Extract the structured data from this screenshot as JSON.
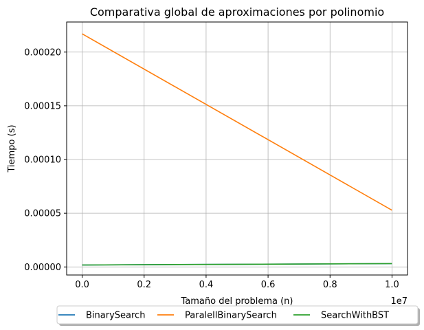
{
  "chart_data": {
    "type": "line",
    "title": "Comparativa global de aproximaciones por polinomio",
    "xlabel": "Tamaño del problema (n)",
    "ylabel": "Tiempo (s)",
    "x_offset_label": "1e7",
    "xlim": [
      -0.05,
      1.05
    ],
    "ylim": [
      -7.5e-06,
      0.000228
    ],
    "xticks": [
      0.0,
      0.2,
      0.4,
      0.6,
      0.8,
      1.0
    ],
    "xtick_labels": [
      "0.0",
      "0.2",
      "0.4",
      "0.6",
      "0.8",
      "1.0"
    ],
    "yticks": [
      0.0,
      5e-05,
      0.0001,
      0.00015,
      0.0002
    ],
    "ytick_labels": [
      "0.00000",
      "0.00005",
      "0.00010",
      "0.00015",
      "0.00020"
    ],
    "grid": true,
    "legend_position": "bottom-center",
    "series": [
      {
        "name": "BinarySearch",
        "color": "#1f77b4",
        "x": [
          0.0,
          1.0
        ],
        "y": [
          1.8e-06,
          3.1e-06
        ]
      },
      {
        "name": "ParalellBinarySearch",
        "color": "#ff7f0e",
        "x": [
          0.0,
          1.0
        ],
        "y": [
          0.000217,
          5.28e-05
        ]
      },
      {
        "name": "SearchWithBST",
        "color": "#2ca02c",
        "x": [
          0.0,
          1.0
        ],
        "y": [
          1.8e-06,
          3.1e-06
        ]
      }
    ]
  }
}
